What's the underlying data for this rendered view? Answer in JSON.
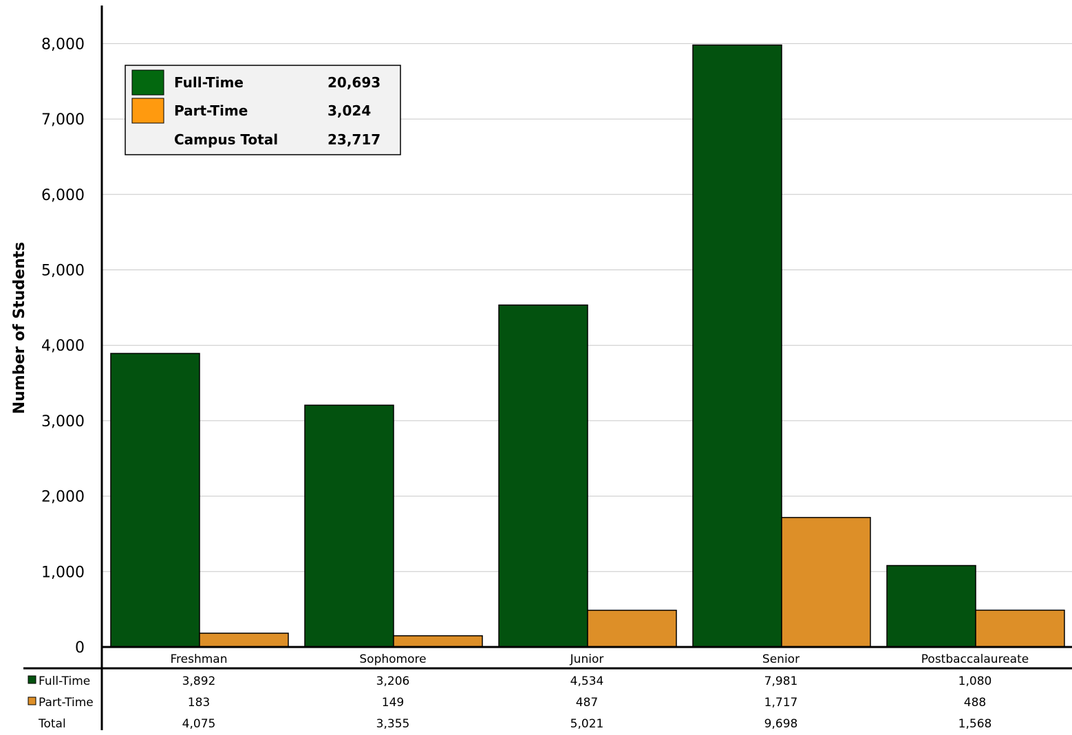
{
  "chart_data": {
    "type": "bar",
    "ylabel": "Number of Students",
    "ylim": [
      0,
      8000
    ],
    "yticks": [
      "0",
      "1,000",
      "2,000",
      "3,000",
      "4,000",
      "5,000",
      "6,000",
      "7,000",
      "8,000"
    ],
    "ytick_values": [
      0,
      1000,
      2000,
      3000,
      4000,
      5000,
      6000,
      7000,
      8000
    ],
    "grid": true,
    "categories": [
      "Freshman",
      "Sophomore",
      "Junior",
      "Senior",
      "Postbaccalaureate"
    ],
    "series": [
      {
        "name": "Full-Time",
        "color": "#03520F",
        "values": [
          3892,
          3206,
          4534,
          7981,
          1080
        ]
      },
      {
        "name": "Part-Time",
        "color": "#DD8F28",
        "values": [
          183,
          149,
          487,
          1717,
          488
        ]
      }
    ],
    "table": {
      "rows": [
        {
          "label": "Full-Time",
          "cells": [
            "3,892",
            "3,206",
            "4,534",
            "7,981",
            "1,080"
          ]
        },
        {
          "label": "Part-Time",
          "cells": [
            "183",
            "149",
            "487",
            "1,717",
            "488"
          ]
        },
        {
          "label": "Total",
          "cells": [
            "4,075",
            "3,355",
            "5,021",
            "9,698",
            "1,568"
          ]
        }
      ]
    },
    "legend": {
      "placement": "top-left",
      "entries": [
        {
          "label": "Full-Time",
          "value": "20,693",
          "color": "#03680F"
        },
        {
          "label": "Part-Time",
          "value": "3,024",
          "color": "#FF9A0F"
        },
        {
          "label": "Campus Total",
          "value": "23,717",
          "color": ""
        }
      ]
    }
  }
}
